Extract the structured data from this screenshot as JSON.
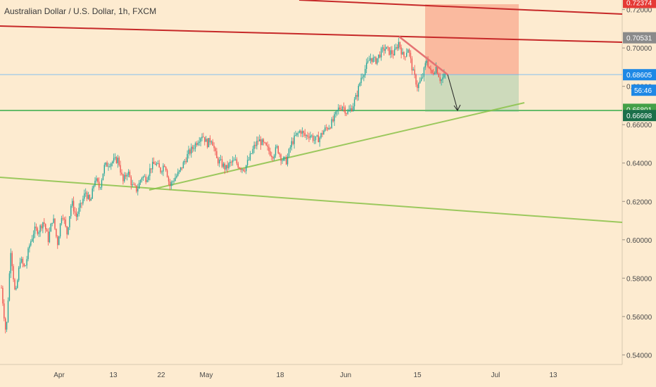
{
  "window": {
    "title": "Australian Dollar / U.S. Dollar, 1h, FXCM"
  },
  "chart_data": {
    "type": "candlestick",
    "symbol": "Australian Dollar / U.S. Dollar",
    "interval": "1h",
    "source": "FXCM",
    "x_axis_labels": [
      "Apr",
      "13",
      "22",
      "May",
      "18",
      "Jun",
      "15",
      "Jul",
      "13"
    ],
    "y_ticks": [
      "0.72000",
      "0.70000",
      "0.68000",
      "0.66000",
      "0.64000",
      "0.62000",
      "0.60000",
      "0.58000",
      "0.56000",
      "0.54000"
    ],
    "ylim": [
      0.535,
      0.725
    ],
    "countdown": "56:46",
    "price_tags": [
      {
        "label": "0.72374",
        "value": 0.72374,
        "bg": "#e53935",
        "color": "#ffffff"
      },
      {
        "label": "0.70531",
        "value": 0.70531,
        "bg": "#8a8a8a",
        "color": "#ffffff"
      },
      {
        "label": "0.68605",
        "value": 0.68605,
        "bg": "#1e88e5",
        "color": "#ffffff"
      },
      {
        "label": "0.66801",
        "value": 0.66801,
        "bg": "#43a047",
        "color": "#ffffff"
      },
      {
        "label": "0.66698",
        "value": 0.66698,
        "bg": "#1b6f4a",
        "color": "#ffffff"
      }
    ],
    "price_path": [
      [
        0.575,
        0.55
      ],
      [
        0.595,
        0.57
      ],
      [
        0.59,
        0.585
      ],
      [
        0.597,
        0.605
      ],
      [
        0.605,
        0.61
      ],
      [
        0.6,
        0.612
      ],
      [
        0.598,
        0.615
      ],
      [
        0.603,
        0.62
      ],
      [
        0.612,
        0.618
      ],
      [
        0.625,
        0.619
      ],
      [
        0.632,
        0.627
      ],
      [
        0.638,
        0.64
      ],
      [
        0.641,
        0.642
      ],
      [
        0.63,
        0.636
      ],
      [
        0.628,
        0.626
      ],
      [
        0.633,
        0.632
      ],
      [
        0.638,
        0.64
      ],
      [
        0.636,
        0.64
      ],
      [
        0.628,
        0.632
      ],
      [
        0.635,
        0.64
      ],
      [
        0.645,
        0.648
      ],
      [
        0.652,
        0.655
      ],
      [
        0.65,
        0.653
      ],
      [
        0.642,
        0.64
      ],
      [
        0.637,
        0.64
      ],
      [
        0.641,
        0.638
      ],
      [
        0.637,
        0.642
      ],
      [
        0.648,
        0.652
      ],
      [
        0.65,
        0.647
      ],
      [
        0.644,
        0.648
      ],
      [
        0.642,
        0.641
      ],
      [
        0.65,
        0.654
      ],
      [
        0.657,
        0.654
      ],
      [
        0.655,
        0.652
      ],
      [
        0.653,
        0.657
      ],
      [
        0.659,
        0.662
      ],
      [
        0.668,
        0.67
      ],
      [
        0.666,
        0.669
      ],
      [
        0.675,
        0.685
      ],
      [
        0.69,
        0.695
      ],
      [
        0.693,
        0.697
      ],
      [
        0.7,
        0.698
      ],
      [
        0.697,
        0.703
      ],
      [
        0.695,
        0.7
      ],
      [
        0.688,
        0.68
      ],
      [
        0.684,
        0.694
      ],
      [
        0.686,
        0.69
      ],
      [
        0.683,
        0.686
      ]
    ],
    "annotations": {
      "resistance_line": {
        "color": "#c62828"
      },
      "support_horizontal": {
        "value": 0.66801,
        "color": "#66bb6a"
      },
      "rising_trendline": {
        "color": "#8bc34a"
      },
      "long_trendline": {
        "color": "#8bc34a"
      },
      "pattern_line": {
        "color": "#e57373"
      },
      "short_position": {
        "entry": 0.68605,
        "stop": 0.72374,
        "target": 0.66801,
        "stop_zone_color": "#f8a98f",
        "target_zone_color": "#c8d8b8"
      }
    }
  }
}
